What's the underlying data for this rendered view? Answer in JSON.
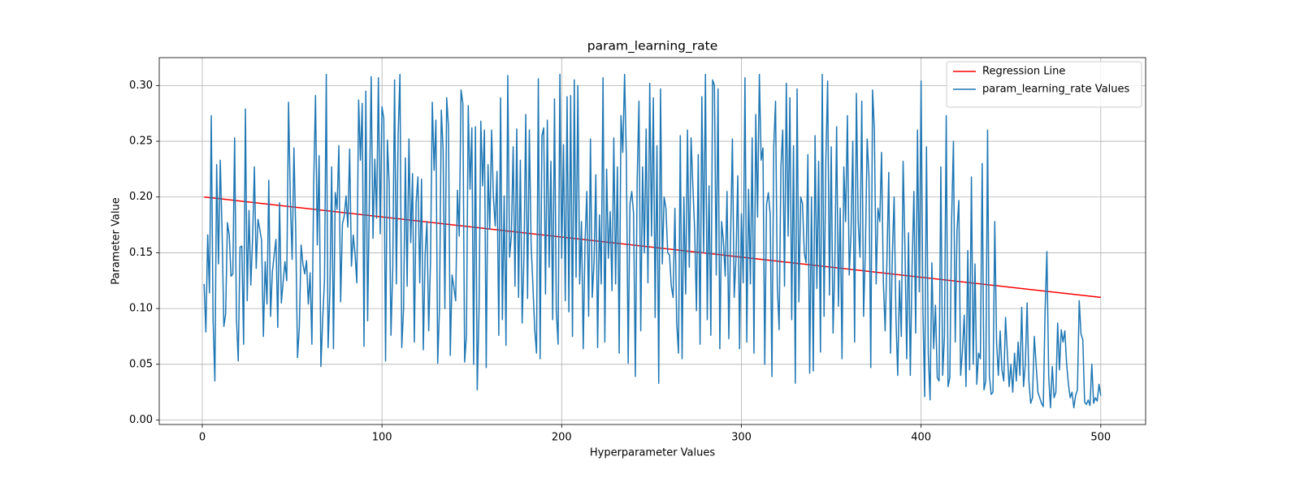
{
  "chart_data": {
    "type": "line",
    "title": "param_learning_rate",
    "xlabel": "Hyperparameter Values",
    "ylabel": "Parameter Value",
    "xlim": [
      -23.95,
      524.95
    ],
    "ylim": [
      -0.004,
      0.325
    ],
    "xticks": [
      0,
      100,
      200,
      300,
      400,
      500
    ],
    "yticks": [
      {
        "value": 0,
        "label": "0.00"
      },
      0.05,
      {
        "value": 0.1,
        "label": "0.10"
      },
      0.15,
      {
        "value": 0.2,
        "label": "0.20"
      },
      0.25,
      {
        "value": 0.3,
        "label": "0.30"
      }
    ],
    "grid": true,
    "legend": "upper right",
    "series": [
      {
        "name": "Regression Line",
        "color": "#ff0000",
        "x": [
          1,
          500
        ],
        "values": [
          0.2,
          0.11
        ]
      },
      {
        "name": "param_learning_rate Values",
        "color": "#1f77b4",
        "x": [
          1,
          2,
          3,
          4,
          5,
          6,
          7,
          8,
          9,
          10,
          11,
          12,
          13,
          14,
          15,
          16,
          17,
          18,
          19,
          20,
          21,
          22,
          23,
          24,
          25,
          26,
          27,
          28,
          29,
          30,
          31,
          32,
          33,
          34,
          35,
          36,
          37,
          38,
          39,
          40,
          41,
          42,
          43,
          44,
          45,
          46,
          47,
          48,
          49,
          50,
          51,
          52,
          53,
          54,
          55,
          56,
          57,
          58,
          59,
          60,
          61,
          62,
          63,
          64,
          65,
          66,
          67,
          68,
          69,
          70,
          71,
          72,
          73,
          74,
          75,
          76,
          77,
          78,
          79,
          80,
          81,
          82,
          83,
          84,
          85,
          86,
          87,
          88,
          89,
          90,
          91,
          92,
          93,
          94,
          95,
          96,
          97,
          98,
          99,
          100,
          101,
          102,
          103,
          104,
          105,
          106,
          107,
          108,
          109,
          110,
          111,
          112,
          113,
          114,
          115,
          116,
          117,
          118,
          119,
          120,
          121,
          122,
          123,
          124,
          125,
          126,
          127,
          128,
          129,
          130,
          131,
          132,
          133,
          134,
          135,
          136,
          137,
          138,
          139,
          140,
          141,
          142,
          143,
          144,
          145,
          146,
          147,
          148,
          149,
          150,
          151,
          152,
          153,
          154,
          155,
          156,
          157,
          158,
          159,
          160,
          161,
          162,
          163,
          164,
          165,
          166,
          167,
          168,
          169,
          170,
          171,
          172,
          173,
          174,
          175,
          176,
          177,
          178,
          179,
          180,
          181,
          182,
          183,
          184,
          185,
          186,
          187,
          188,
          189,
          190,
          191,
          192,
          193,
          194,
          195,
          196,
          197,
          198,
          199,
          200,
          201,
          202,
          203,
          204,
          205,
          206,
          207,
          208,
          209,
          210,
          211,
          212,
          213,
          214,
          215,
          216,
          217,
          218,
          219,
          220,
          221,
          222,
          223,
          224,
          225,
          226,
          227,
          228,
          229,
          230,
          231,
          232,
          233,
          234,
          235,
          236,
          237,
          238,
          239,
          240,
          241,
          242,
          243,
          244,
          245,
          246,
          247,
          248,
          249,
          250,
          251,
          252,
          253,
          254,
          255,
          256,
          257,
          258,
          259,
          260,
          261,
          262,
          263,
          264,
          265,
          266,
          267,
          268,
          269,
          270,
          271,
          272,
          273,
          274,
          275,
          276,
          277,
          278,
          279,
          280,
          281,
          282,
          283,
          284,
          285,
          286,
          287,
          288,
          289,
          290,
          291,
          292,
          293,
          294,
          295,
          296,
          297,
          298,
          299,
          300,
          301,
          302,
          303,
          304,
          305,
          306,
          307,
          308,
          309,
          310,
          311,
          312,
          313,
          314,
          315,
          316,
          317,
          318,
          319,
          320,
          321,
          322,
          323,
          324,
          325,
          326,
          327,
          328,
          329,
          330,
          331,
          332,
          333,
          334,
          335,
          336,
          337,
          338,
          339,
          340,
          341,
          342,
          343,
          344,
          345,
          346,
          347,
          348,
          349,
          350,
          351,
          352,
          353,
          354,
          355,
          356,
          357,
          358,
          359,
          360,
          361,
          362,
          363,
          364,
          365,
          366,
          367,
          368,
          369,
          370,
          371,
          372,
          373,
          374,
          375,
          376,
          377,
          378,
          379,
          380,
          381,
          382,
          383,
          384,
          385,
          386,
          387,
          388,
          389,
          390,
          391,
          392,
          393,
          394,
          395,
          396,
          397,
          398,
          399,
          400,
          401,
          402,
          403,
          404,
          405,
          406,
          407,
          408,
          409,
          410,
          411,
          412,
          413,
          414,
          415,
          416,
          417,
          418,
          419,
          420,
          421,
          422,
          423,
          424,
          425,
          426,
          427,
          428,
          429,
          430,
          431,
          432,
          433,
          434,
          435,
          436,
          437,
          438,
          439,
          440,
          441,
          442,
          443,
          444,
          445,
          446,
          447,
          448,
          449,
          450,
          451,
          452,
          453,
          454,
          455,
          456,
          457,
          458,
          459,
          460,
          461,
          462,
          463,
          464,
          465,
          466,
          467,
          468,
          469,
          470,
          471,
          472,
          473,
          474,
          475,
          476,
          477,
          478,
          479,
          480,
          481,
          482,
          483,
          484,
          485,
          486,
          487,
          488,
          489,
          490,
          491,
          492,
          493,
          494,
          495,
          496,
          497,
          498,
          499,
          500
        ],
        "values": [
          0.122,
          0.079,
          0.166,
          0.114,
          0.273,
          0.09,
          0.035,
          0.229,
          0.14,
          0.233,
          0.17,
          0.084,
          0.095,
          0.177,
          0.166,
          0.129,
          0.131,
          0.253,
          0.092,
          0.053,
          0.155,
          0.156,
          0.068,
          0.279,
          0.107,
          0.188,
          0.121,
          0.163,
          0.227,
          0.136,
          0.18,
          0.171,
          0.161,
          0.075,
          0.142,
          0.104,
          0.215,
          0.093,
          0.133,
          0.148,
          0.162,
          0.083,
          0.195,
          0.105,
          0.124,
          0.142,
          0.125,
          0.285,
          0.197,
          0.144,
          0.244,
          0.169,
          0.056,
          0.083,
          0.157,
          0.14,
          0.131,
          0.143,
          0.104,
          0.132,
          0.068,
          0.212,
          0.291,
          0.157,
          0.237,
          0.048,
          0.09,
          0.125,
          0.31,
          0.065,
          0.114,
          0.227,
          0.064,
          0.204,
          0.189,
          0.246,
          0.106,
          0.176,
          0.183,
          0.201,
          0.173,
          0.243,
          0.138,
          0.166,
          0.149,
          0.123,
          0.287,
          0.233,
          0.284,
          0.066,
          0.295,
          0.089,
          0.2,
          0.308,
          0.163,
          0.234,
          0.181,
          0.307,
          0.167,
          0.281,
          0.27,
          0.053,
          0.251,
          0.212,
          0.076,
          0.137,
          0.305,
          0.122,
          0.256,
          0.31,
          0.065,
          0.099,
          0.235,
          0.12,
          0.252,
          0.159,
          0.221,
          0.07,
          0.195,
          0.218,
          0.123,
          0.216,
          0.063,
          0.148,
          0.178,
          0.08,
          0.142,
          0.285,
          0.224,
          0.269,
          0.051,
          0.1,
          0.278,
          0.243,
          0.1,
          0.289,
          0.263,
          0.058,
          0.13,
          0.119,
          0.107,
          0.206,
          0.165,
          0.296,
          0.284,
          0.052,
          0.076,
          0.282,
          0.207,
          0.262,
          0.05,
          0.263,
          0.027,
          0.098,
          0.268,
          0.21,
          0.26,
          0.047,
          0.229,
          0.171,
          0.26,
          0.2,
          0.174,
          0.223,
          0.076,
          0.289,
          0.09,
          0.201,
          0.067,
          0.309,
          0.146,
          0.165,
          0.245,
          0.12,
          0.261,
          0.11,
          0.233,
          0.087,
          0.145,
          0.274,
          0.109,
          0.26,
          0.157,
          0.12,
          0.081,
          0.06,
          0.306,
          0.055,
          0.255,
          0.262,
          0.113,
          0.269,
          0.137,
          0.232,
          0.09,
          0.288,
          0.098,
          0.068,
          0.31,
          0.145,
          0.247,
          0.107,
          0.29,
          0.097,
          0.291,
          0.075,
          0.305,
          0.128,
          0.3,
          0.122,
          0.178,
          0.064,
          0.16,
          0.205,
          0.093,
          0.252,
          0.11,
          0.141,
          0.22,
          0.065,
          0.184,
          0.122,
          0.307,
          0.07,
          0.225,
          0.145,
          0.187,
          0.116,
          0.253,
          0.122,
          0.227,
          0.06,
          0.273,
          0.24,
          0.31,
          0.233,
          0.051,
          0.194,
          0.205,
          0.185,
          0.039,
          0.215,
          0.286,
          0.08,
          0.227,
          0.15,
          0.261,
          0.123,
          0.302,
          0.165,
          0.289,
          0.092,
          0.246,
          0.033,
          0.297,
          0.14,
          0.2,
          0.19,
          0.15,
          0.148,
          0.12,
          0.11,
          0.19,
          0.087,
          0.06,
          0.255,
          0.055,
          0.2,
          0.113,
          0.26,
          0.137,
          0.253,
          0.21,
          0.17,
          0.098,
          0.238,
          0.068,
          0.29,
          0.15,
          0.31,
          0.09,
          0.21,
          0.076,
          0.305,
          0.3,
          0.13,
          0.297,
          0.064,
          0.178,
          0.16,
          0.129,
          0.205,
          0.073,
          0.164,
          0.252,
          0.11,
          0.145,
          0.219,
          0.064,
          0.185,
          0.123,
          0.307,
          0.07,
          0.207,
          0.122,
          0.253,
          0.06,
          0.274,
          0.182,
          0.31,
          0.233,
          0.244,
          0.05,
          0.193,
          0.204,
          0.185,
          0.039,
          0.245,
          0.286,
          0.12,
          0.081,
          0.227,
          0.26,
          0.12,
          0.302,
          0.165,
          0.289,
          0.09,
          0.246,
          0.033,
          0.297,
          0.106,
          0.2,
          0.194,
          0.15,
          0.141,
          0.238,
          0.042,
          0.2,
          0.044,
          0.255,
          0.118,
          0.232,
          0.061,
          0.31,
          0.093,
          0.233,
          0.304,
          0.112,
          0.245,
          0.078,
          0.14,
          0.263,
          0.102,
          0.19,
          0.055,
          0.227,
          0.178,
          0.273,
          0.13,
          0.166,
          0.25,
          0.07,
          0.293,
          0.178,
          0.146,
          0.286,
          0.093,
          0.153,
          0.252,
          0.218,
          0.047,
          0.296,
          0.26,
          0.122,
          0.19,
          0.178,
          0.24,
          0.124,
          0.08,
          0.144,
          0.222,
          0.06,
          0.148,
          0.2,
          0.092,
          0.04,
          0.125,
          0.075,
          0.232,
          0.157,
          0.055,
          0.168,
          0.04,
          0.138,
          0.205,
          0.078,
          0.26,
          0.115,
          0.304,
          0.1,
          0.021,
          0.245,
          0.06,
          0.018,
          0.141,
          0.064,
          0.103,
          0.038,
          0.035,
          0.227,
          0.04,
          0.075,
          0.273,
          0.03,
          0.038,
          0.18,
          0.25,
          0.07,
          0.17,
          0.197,
          0.04,
          0.062,
          0.094,
          0.03,
          0.152,
          0.045,
          0.218,
          0.05,
          0.14,
          0.032,
          0.06,
          0.055,
          0.23,
          0.027,
          0.035,
          0.26,
          0.04,
          0.023,
          0.025,
          0.178,
          0.07,
          0.04,
          0.08,
          0.045,
          0.035,
          0.092,
          0.06,
          0.03,
          0.05,
          0.025,
          0.06,
          0.035,
          0.07,
          0.04,
          0.101,
          0.03,
          0.05,
          0.105,
          0.035,
          0.015,
          0.02,
          0.075,
          0.05,
          0.025,
          0.02,
          0.015,
          0.012,
          0.098,
          0.151,
          0.04,
          0.011,
          0.048,
          0.02,
          0.025,
          0.087,
          0.045,
          0.081,
          0.07,
          0.08,
          0.05,
          0.032,
          0.02,
          0.025,
          0.011,
          0.022,
          0.027,
          0.107,
          0.077,
          0.072,
          0.016,
          0.014,
          0.018,
          0.013,
          0.05,
          0.015,
          0.02,
          0.017,
          0.032,
          0.022
        ]
      }
    ]
  }
}
